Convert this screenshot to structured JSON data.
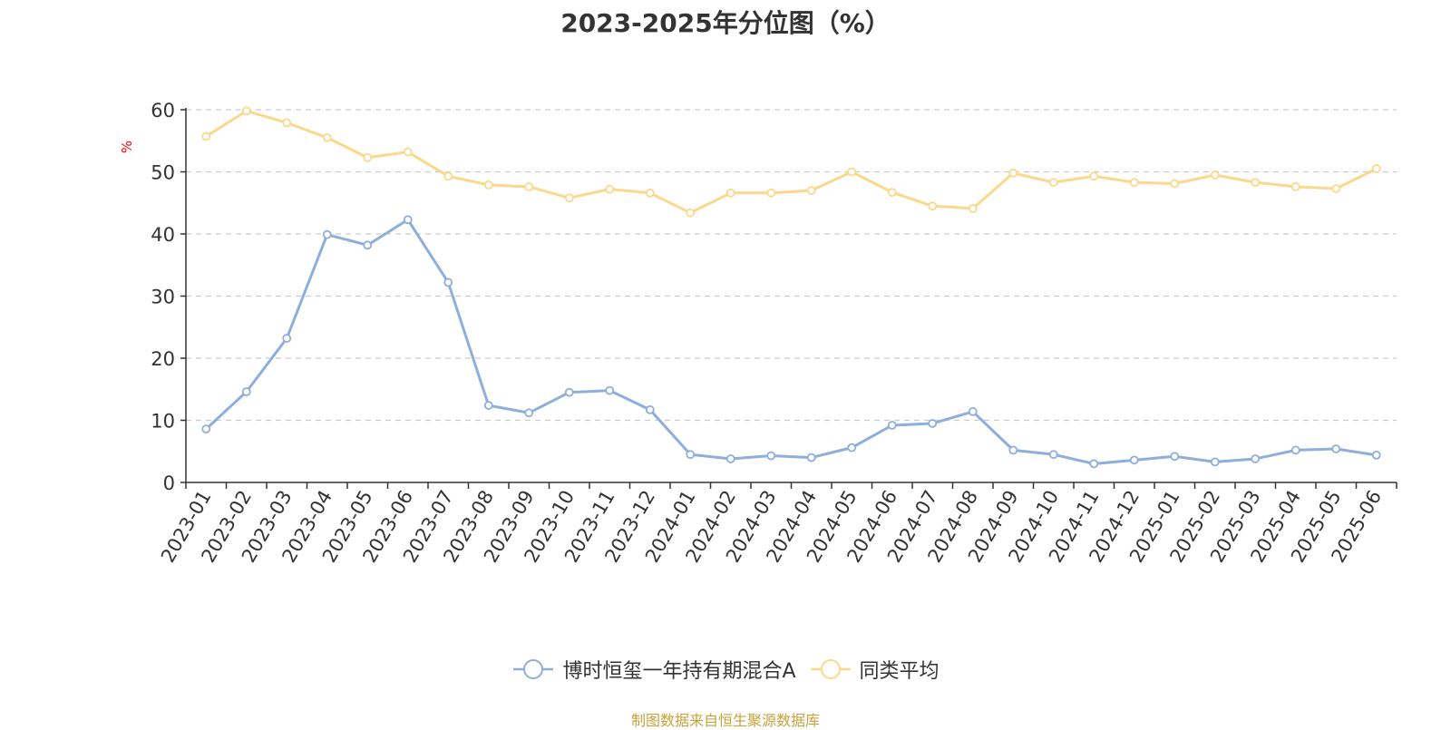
{
  "colors": {
    "series_a": "#8eaedb",
    "series_b": "#fad88c",
    "ylabel": "#ff0000",
    "source": "#c8a13a"
  },
  "chart_data": {
    "type": "line",
    "title": "2023-2025年分位图（%）",
    "ylabel": "%",
    "ylim": [
      0,
      60
    ],
    "yticks": [
      0,
      10,
      20,
      30,
      40,
      50,
      60
    ],
    "grid": true,
    "legend_position": "bottom",
    "categories": [
      "2023-01",
      "2023-02",
      "2023-03",
      "2023-04",
      "2023-05",
      "2023-06",
      "2023-07",
      "2023-08",
      "2023-09",
      "2023-10",
      "2023-11",
      "2023-12",
      "2024-01",
      "2024-02",
      "2024-03",
      "2024-04",
      "2024-05",
      "2024-06",
      "2024-07",
      "2024-08",
      "2024-09",
      "2024-10",
      "2024-11",
      "2024-12",
      "2025-01",
      "2025-02",
      "2025-03",
      "2025-04",
      "2025-05",
      "2025-06"
    ],
    "series": [
      {
        "name": "博时恒玺一年持有期混合A",
        "values": [
          8.6,
          14.6,
          23.2,
          39.9,
          38.2,
          42.3,
          32.2,
          12.4,
          11.2,
          14.5,
          14.8,
          11.7,
          4.5,
          3.8,
          4.3,
          4.0,
          5.6,
          9.2,
          9.5,
          11.4,
          5.2,
          4.5,
          3.0,
          3.6,
          4.2,
          3.3,
          3.8,
          5.2,
          5.4,
          4.4
        ]
      },
      {
        "name": "同类平均",
        "values": [
          55.7,
          59.8,
          57.9,
          55.5,
          52.3,
          53.2,
          49.3,
          47.9,
          47.6,
          45.8,
          47.2,
          46.6,
          43.4,
          46.6,
          46.6,
          47.0,
          50.0,
          46.7,
          44.5,
          44.1,
          49.8,
          48.3,
          49.3,
          48.3,
          48.1,
          49.5,
          48.3,
          47.6,
          47.3,
          50.5
        ]
      }
    ]
  },
  "source_note": "制图数据来自恒生聚源数据库"
}
